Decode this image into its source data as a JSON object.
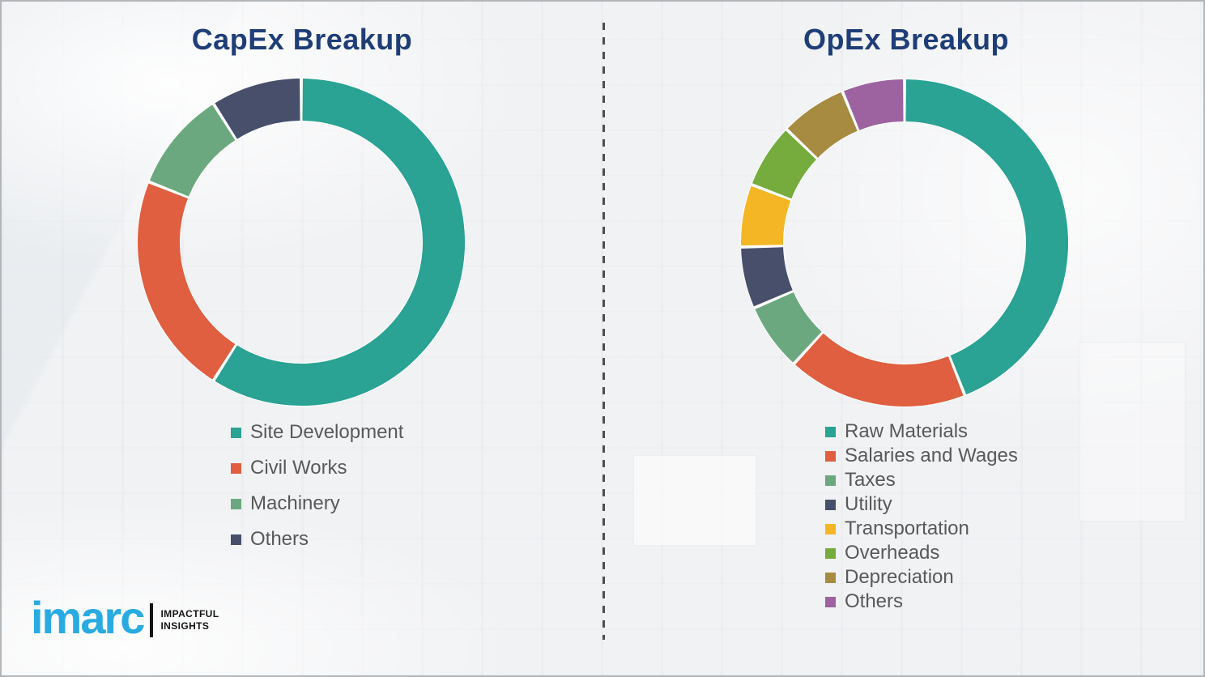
{
  "chart_data": [
    {
      "type": "donut",
      "title": "CapEx Breakup",
      "categories": [
        "Site Development",
        "Civil Works",
        "Machinery",
        "Others"
      ],
      "values": [
        59,
        22,
        10,
        9
      ],
      "colors": [
        "#2aa294",
        "#df5f40",
        "#6ca87f",
        "#474f6b"
      ],
      "start_angle_deg": 0,
      "direction": "clockwise",
      "legend_position": "below-left",
      "data_labels": "none"
    },
    {
      "type": "donut",
      "title": "OpEx Breakup",
      "categories": [
        "Raw Materials",
        "Salaries and Wages",
        "Taxes",
        "Utility",
        "Transportation",
        "Overheads",
        "Depreciation",
        "Others"
      ],
      "values": [
        44,
        17.8,
        6.7,
        6.1,
        6.2,
        6.4,
        6.6,
        6.2
      ],
      "colors": [
        "#2aa294",
        "#df5f40",
        "#6ca87f",
        "#474f6b",
        "#f5b626",
        "#76ab3d",
        "#a78b41",
        "#9d63a0"
      ],
      "start_angle_deg": 0,
      "direction": "clockwise",
      "legend_position": "below-left",
      "data_labels": "none"
    }
  ],
  "logo": {
    "brand": "imarc",
    "tagline_line1": "IMPACTFUL",
    "tagline_line2": "INSIGHTS"
  },
  "palette": {
    "title_navy": "#1f3e78",
    "legend_text": "#595959",
    "divider": "#4d4d4d",
    "background": "#f1f2f4",
    "logo_blue": "#29abe2",
    "logo_ink": "#151515"
  }
}
